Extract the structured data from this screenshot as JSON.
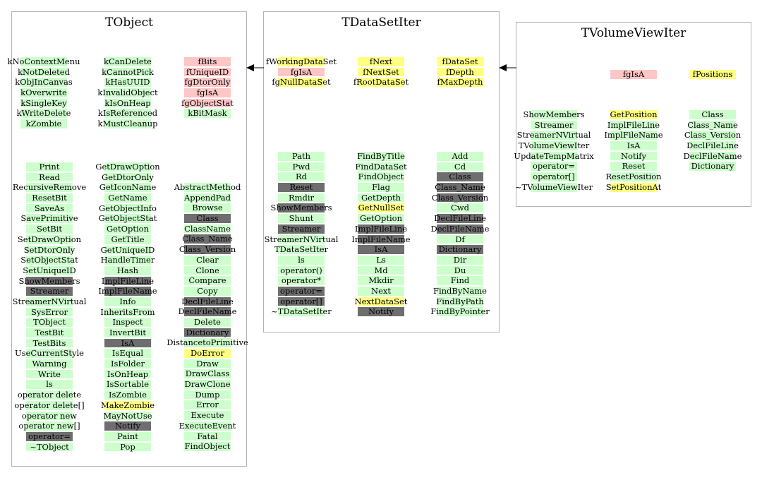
{
  "classes": [
    {
      "name": "TObject",
      "columns": [
        [
          {
            "t": "kNoContextMenu",
            "c": "green"
          },
          {
            "t": "kNotDeleted",
            "c": "green"
          },
          {
            "t": "kObjInCanvas",
            "c": "green"
          },
          {
            "t": "kOverwrite",
            "c": "green"
          },
          {
            "t": "kSingleKey",
            "c": "green"
          },
          {
            "t": "kWriteDelete",
            "c": "green"
          },
          {
            "t": "kZombie",
            "c": "green"
          }
        ],
        [
          {
            "t": "kCanDelete",
            "c": "green"
          },
          {
            "t": "kCannotPick",
            "c": "green"
          },
          {
            "t": "kHasUUID",
            "c": "green"
          },
          {
            "t": "kInvalidObject",
            "c": "green"
          },
          {
            "t": "kIsOnHeap",
            "c": "green"
          },
          {
            "t": "kIsReferenced",
            "c": "green"
          },
          {
            "t": "kMustCleanup",
            "c": "green"
          }
        ],
        [
          {
            "t": "fBits",
            "c": "red"
          },
          {
            "t": "fUniqueID",
            "c": "red"
          },
          {
            "t": "fgDtorOnly",
            "c": "red"
          },
          {
            "t": "fgIsA",
            "c": "red"
          },
          {
            "t": "fgObjectStat",
            "c": "red"
          },
          {
            "t": "kBitMask",
            "c": "green"
          }
        ],
        [
          {
            "t": "Print",
            "c": "green"
          },
          {
            "t": "Read",
            "c": "green"
          },
          {
            "t": "RecursiveRemove",
            "c": "green"
          },
          {
            "t": "ResetBit",
            "c": "green"
          },
          {
            "t": "SaveAs",
            "c": "green"
          },
          {
            "t": "SavePrimitive",
            "c": "green"
          },
          {
            "t": "SetBit",
            "c": "green"
          },
          {
            "t": "SetDrawOption",
            "c": "green"
          },
          {
            "t": "SetDtorOnly",
            "c": "green"
          },
          {
            "t": "SetObjectStat",
            "c": "green"
          },
          {
            "t": "SetUniqueID",
            "c": "green"
          },
          {
            "t": "ShowMembers",
            "c": "gray"
          },
          {
            "t": "Streamer",
            "c": "gray"
          },
          {
            "t": "StreamerNVirtual",
            "c": "green"
          },
          {
            "t": "SysError",
            "c": "green"
          },
          {
            "t": "TObject",
            "c": "green"
          },
          {
            "t": "TestBit",
            "c": "green"
          },
          {
            "t": "TestBits",
            "c": "green"
          },
          {
            "t": "UseCurrentStyle",
            "c": "green"
          },
          {
            "t": "Warning",
            "c": "green"
          },
          {
            "t": "Write",
            "c": "green"
          },
          {
            "t": "ls",
            "c": "green"
          },
          {
            "t": "operator delete",
            "c": "green"
          },
          {
            "t": "operator delete[]",
            "c": "green"
          },
          {
            "t": "operator new",
            "c": "green"
          },
          {
            "t": "operator new[]",
            "c": "green"
          },
          {
            "t": "operator=",
            "c": "gray"
          },
          {
            "t": "~TObject",
            "c": "green"
          }
        ],
        [
          {
            "t": "GetDrawOption",
            "c": "green"
          },
          {
            "t": "GetDtorOnly",
            "c": "green"
          },
          {
            "t": "GetIconName",
            "c": "green"
          },
          {
            "t": "GetName",
            "c": "green"
          },
          {
            "t": "GetObjectInfo",
            "c": "green"
          },
          {
            "t": "GetObjectStat",
            "c": "green"
          },
          {
            "t": "GetOption",
            "c": "green"
          },
          {
            "t": "GetTitle",
            "c": "green"
          },
          {
            "t": "GetUniqueID",
            "c": "green"
          },
          {
            "t": "HandleTimer",
            "c": "green"
          },
          {
            "t": "Hash",
            "c": "green"
          },
          {
            "t": "ImplFileLine",
            "c": "gray"
          },
          {
            "t": "ImplFileName",
            "c": "gray"
          },
          {
            "t": "Info",
            "c": "green"
          },
          {
            "t": "InheritsFrom",
            "c": "green"
          },
          {
            "t": "Inspect",
            "c": "green"
          },
          {
            "t": "InvertBit",
            "c": "green"
          },
          {
            "t": "IsA",
            "c": "gray"
          },
          {
            "t": "IsEqual",
            "c": "green"
          },
          {
            "t": "IsFolder",
            "c": "green"
          },
          {
            "t": "IsOnHeap",
            "c": "green"
          },
          {
            "t": "IsSortable",
            "c": "green"
          },
          {
            "t": "IsZombie",
            "c": "green"
          },
          {
            "t": "MakeZombie",
            "c": "yellow"
          },
          {
            "t": "MayNotUse",
            "c": "green"
          },
          {
            "t": "Notify",
            "c": "gray"
          },
          {
            "t": "Paint",
            "c": "green"
          },
          {
            "t": "Pop",
            "c": "green"
          }
        ],
        [
          {
            "t": "AbstractMethod",
            "c": "green"
          },
          {
            "t": "AppendPad",
            "c": "green"
          },
          {
            "t": "Browse",
            "c": "green"
          },
          {
            "t": "Class",
            "c": "gray"
          },
          {
            "t": "ClassName",
            "c": "green"
          },
          {
            "t": "Class_Name",
            "c": "gray"
          },
          {
            "t": "Class_Version",
            "c": "gray"
          },
          {
            "t": "Clear",
            "c": "green"
          },
          {
            "t": "Clone",
            "c": "green"
          },
          {
            "t": "Compare",
            "c": "green"
          },
          {
            "t": "Copy",
            "c": "green"
          },
          {
            "t": "DeclFileLine",
            "c": "gray"
          },
          {
            "t": "DeclFileName",
            "c": "gray"
          },
          {
            "t": "Delete",
            "c": "green"
          },
          {
            "t": "Dictionary",
            "c": "gray"
          },
          {
            "t": "DistancetoPrimitive",
            "c": "green"
          },
          {
            "t": "DoError",
            "c": "yellow"
          },
          {
            "t": "Draw",
            "c": "green"
          },
          {
            "t": "DrawClass",
            "c": "green"
          },
          {
            "t": "DrawClone",
            "c": "green"
          },
          {
            "t": "Dump",
            "c": "green"
          },
          {
            "t": "Error",
            "c": "green"
          },
          {
            "t": "Execute",
            "c": "green"
          },
          {
            "t": "ExecuteEvent",
            "c": "green"
          },
          {
            "t": "Fatal",
            "c": "green"
          },
          {
            "t": "FindObject",
            "c": "green"
          }
        ]
      ]
    },
    {
      "name": "TDataSetIter",
      "columns": [
        [
          {
            "t": "fWorkingDataSet",
            "c": "yellow"
          },
          {
            "t": "fgIsA",
            "c": "red"
          },
          {
            "t": "fgNullDataSet",
            "c": "yellow"
          }
        ],
        [
          {
            "t": "fNext",
            "c": "yellow"
          },
          {
            "t": "fNextSet",
            "c": "yellow"
          },
          {
            "t": "fRootDataSet",
            "c": "yellow"
          }
        ],
        [
          {
            "t": "fDataSet",
            "c": "yellow"
          },
          {
            "t": "fDepth",
            "c": "yellow"
          },
          {
            "t": "fMaxDepth",
            "c": "yellow"
          }
        ],
        [
          {
            "t": "Path",
            "c": "green"
          },
          {
            "t": "Pwd",
            "c": "green"
          },
          {
            "t": "Rd",
            "c": "green"
          },
          {
            "t": "Reset",
            "c": "gray"
          },
          {
            "t": "Rmdir",
            "c": "green"
          },
          {
            "t": "ShowMembers",
            "c": "gray"
          },
          {
            "t": "Shunt",
            "c": "green"
          },
          {
            "t": "Streamer",
            "c": "gray"
          },
          {
            "t": "StreamerNVirtual",
            "c": "green"
          },
          {
            "t": "TDataSetIter",
            "c": "green"
          },
          {
            "t": "ls",
            "c": "green"
          },
          {
            "t": "operator()",
            "c": "green"
          },
          {
            "t": "operator*",
            "c": "green"
          },
          {
            "t": "operator=",
            "c": "gray"
          },
          {
            "t": "operator[]",
            "c": "gray"
          },
          {
            "t": "~TDataSetIter",
            "c": "green"
          }
        ],
        [
          {
            "t": "FindByTitle",
            "c": "green"
          },
          {
            "t": "FindDataSet",
            "c": "green"
          },
          {
            "t": "FindObject",
            "c": "green"
          },
          {
            "t": "Flag",
            "c": "green"
          },
          {
            "t": "GetDepth",
            "c": "green"
          },
          {
            "t": "GetNullSet",
            "c": "yellow"
          },
          {
            "t": "GetOption",
            "c": "green"
          },
          {
            "t": "ImplFileLine",
            "c": "gray"
          },
          {
            "t": "ImplFileName",
            "c": "gray"
          },
          {
            "t": "IsA",
            "c": "gray"
          },
          {
            "t": "Ls",
            "c": "green"
          },
          {
            "t": "Md",
            "c": "green"
          },
          {
            "t": "Mkdir",
            "c": "green"
          },
          {
            "t": "Next",
            "c": "green"
          },
          {
            "t": "NextDataSet",
            "c": "yellow"
          },
          {
            "t": "Notify",
            "c": "gray"
          }
        ],
        [
          {
            "t": "Add",
            "c": "green"
          },
          {
            "t": "Cd",
            "c": "green"
          },
          {
            "t": "Class",
            "c": "gray"
          },
          {
            "t": "Class_Name",
            "c": "gray"
          },
          {
            "t": "Class_Version",
            "c": "gray"
          },
          {
            "t": "Cwd",
            "c": "green"
          },
          {
            "t": "DeclFileLine",
            "c": "gray"
          },
          {
            "t": "DeclFileName",
            "c": "gray"
          },
          {
            "t": "Df",
            "c": "green"
          },
          {
            "t": "Dictionary",
            "c": "gray"
          },
          {
            "t": "Dir",
            "c": "green"
          },
          {
            "t": "Du",
            "c": "green"
          },
          {
            "t": "Find",
            "c": "green"
          },
          {
            "t": "FindByName",
            "c": "green"
          },
          {
            "t": "FindByPath",
            "c": "green"
          },
          {
            "t": "FindByPointer",
            "c": "green"
          }
        ]
      ]
    },
    {
      "name": "TVolumeViewIter",
      "columns": [
        [
          {
            "t": "fgIsA",
            "c": "red"
          }
        ],
        [
          {
            "t": "fPositions",
            "c": "yellow"
          }
        ],
        [
          {
            "t": "ShowMembers",
            "c": "green"
          },
          {
            "t": "Streamer",
            "c": "green"
          },
          {
            "t": "StreamerNVirtual",
            "c": "green"
          },
          {
            "t": "TVolumeViewIter",
            "c": "green"
          },
          {
            "t": "UpdateTempMatrix",
            "c": "green"
          },
          {
            "t": "operator=",
            "c": "green"
          },
          {
            "t": "operator[]",
            "c": "green"
          },
          {
            "t": "~TVolumeViewIter",
            "c": "green"
          }
        ],
        [
          {
            "t": "GetPosition",
            "c": "yellow"
          },
          {
            "t": "ImplFileLine",
            "c": "green"
          },
          {
            "t": "ImplFileName",
            "c": "green"
          },
          {
            "t": "IsA",
            "c": "green"
          },
          {
            "t": "Notify",
            "c": "green"
          },
          {
            "t": "Reset",
            "c": "green"
          },
          {
            "t": "ResetPosition",
            "c": "green"
          },
          {
            "t": "SetPositionAt",
            "c": "yellow"
          }
        ],
        [
          {
            "t": "Class",
            "c": "green"
          },
          {
            "t": "Class_Name",
            "c": "green"
          },
          {
            "t": "Class_Version",
            "c": "green"
          },
          {
            "t": "DeclFileLine",
            "c": "green"
          },
          {
            "t": "DeclFileName",
            "c": "green"
          },
          {
            "t": "Dictionary",
            "c": "green"
          }
        ]
      ]
    }
  ]
}
